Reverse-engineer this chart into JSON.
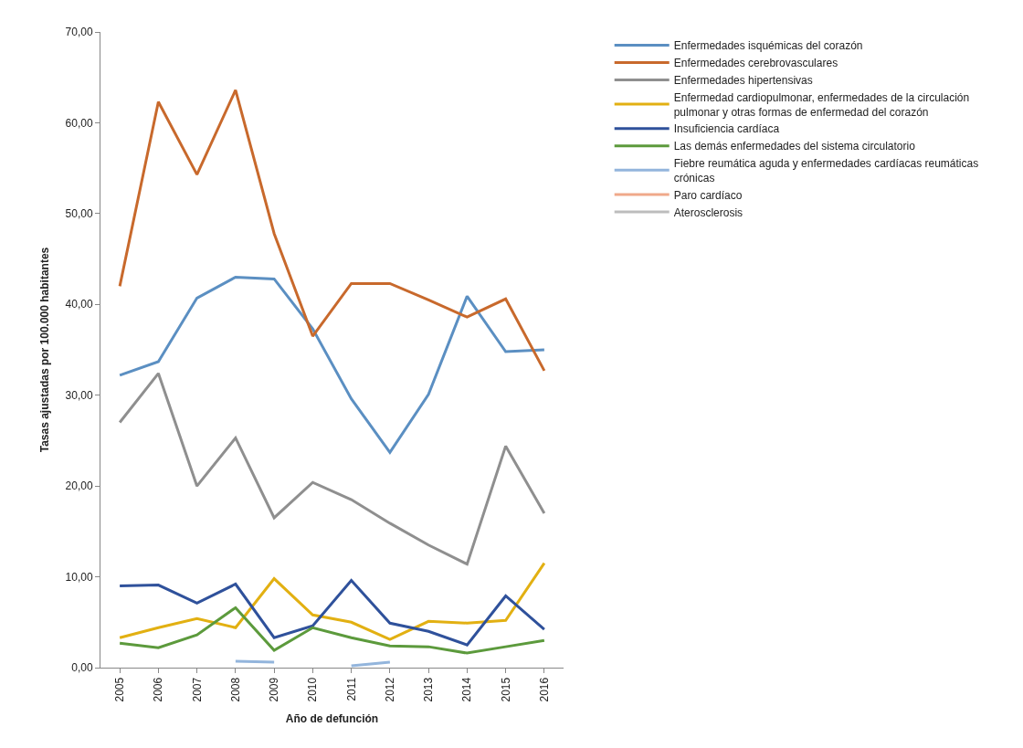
{
  "chart_data": {
    "type": "line",
    "xlabel": "Año de defunción",
    "ylabel": "Tasas ajustadas por 100.000 habitantes",
    "categories": [
      "2005",
      "2006",
      "2007",
      "2008",
      "2009",
      "2010",
      "2011",
      "2012",
      "2013",
      "2014",
      "2015",
      "2016"
    ],
    "ylim": [
      0,
      70
    ],
    "yticks": [
      {
        "value": 0,
        "label": "0,00"
      },
      {
        "value": 10,
        "label": "10,00"
      },
      {
        "value": 20,
        "label": "20,00"
      },
      {
        "value": 30,
        "label": "30,00"
      },
      {
        "value": 40,
        "label": "40,00"
      },
      {
        "value": 50,
        "label": "50,00"
      },
      {
        "value": 60,
        "label": "60,00"
      },
      {
        "value": 70,
        "label": "70,00"
      }
    ],
    "grid": false,
    "legend": "right",
    "marker": "none",
    "line_style": "solid",
    "series": [
      {
        "name": "Enfermedades isquémicas del corazón",
        "color": "#5b8fc2",
        "values": [
          32.2,
          33.7,
          40.7,
          43.0,
          42.8,
          37.3,
          29.6,
          23.7,
          30.1,
          40.9,
          34.8,
          35.0
        ]
      },
      {
        "name": "Enfermedades cerebrovasculares",
        "color": "#c8692c",
        "values": [
          42.0,
          62.3,
          54.3,
          63.6,
          47.8,
          36.5,
          42.3,
          42.3,
          40.5,
          38.6,
          40.6,
          32.7
        ]
      },
      {
        "name": "Enfermedades hipertensivas",
        "color": "#8f8f8f",
        "values": [
          27.0,
          32.4,
          20.0,
          25.3,
          16.5,
          20.4,
          18.5,
          15.9,
          13.5,
          11.4,
          24.4,
          17.0
        ]
      },
      {
        "name": "Enfermedad cardiopulmonar, enfermedades de la circulación pulmonar y otras formas de enfermedad del corazón",
        "color": "#e2b012",
        "values": [
          3.3,
          4.4,
          5.4,
          4.4,
          9.8,
          5.8,
          5.0,
          3.1,
          5.1,
          4.9,
          5.2,
          11.5
        ]
      },
      {
        "name": "Insuficiencia cardíaca",
        "color": "#2f519b",
        "values": [
          9.0,
          9.1,
          7.1,
          9.2,
          3.3,
          4.6,
          9.6,
          4.9,
          4.0,
          2.5,
          7.9,
          4.2
        ]
      },
      {
        "name": "Las demás enfermedades del sistema circulatorio",
        "color": "#5c9a3c",
        "values": [
          2.7,
          2.2,
          3.6,
          6.6,
          1.9,
          4.4,
          3.3,
          2.4,
          2.3,
          1.6,
          2.3,
          3.0
        ]
      },
      {
        "name": "Fiebre reumática aguda y enfermedades cardíacas reumáticas crónicas",
        "color": "#93b5dc",
        "values": [
          null,
          null,
          null,
          0.7,
          0.6,
          null,
          0.2,
          0.6,
          null,
          null,
          null,
          null
        ]
      },
      {
        "name": "Paro cardíaco",
        "color": "#f0a98a",
        "values": [
          null,
          null,
          null,
          null,
          null,
          null,
          null,
          null,
          null,
          null,
          null,
          null
        ]
      },
      {
        "name": "Aterosclerosis",
        "color": "#bdbdbd",
        "values": [
          null,
          null,
          null,
          null,
          null,
          null,
          null,
          null,
          null,
          null,
          null,
          null
        ]
      }
    ]
  }
}
